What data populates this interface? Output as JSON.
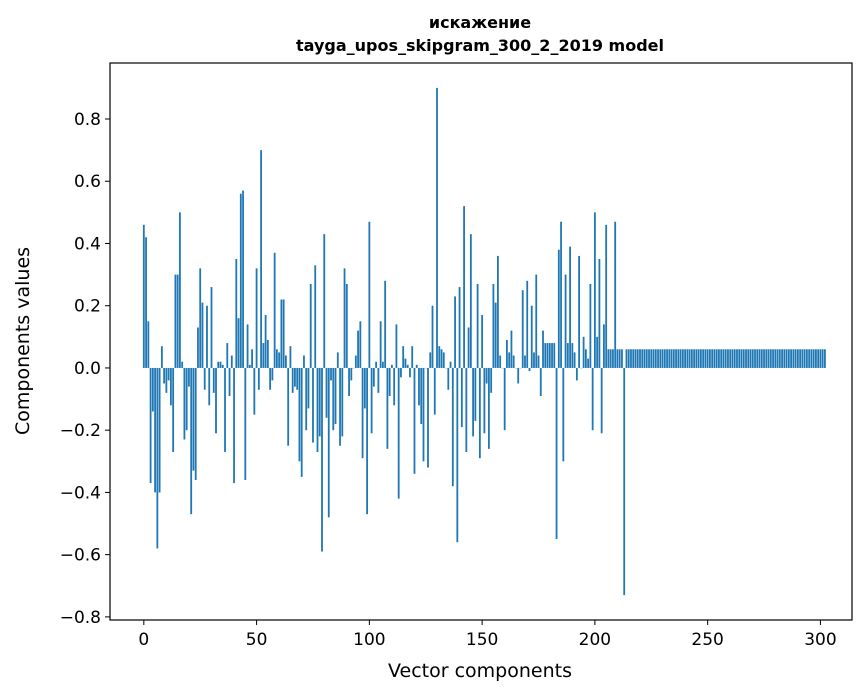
{
  "chart_data": {
    "type": "bar",
    "title": "искажение",
    "subtitle": "tayga_upos_skipgram_300_2_2019 model",
    "xlabel": "Vector components",
    "ylabel": "Components values",
    "xlim": [
      -15,
      314
    ],
    "ylim": [
      -0.81,
      0.98
    ],
    "xticks": [
      0,
      50,
      100,
      150,
      200,
      250,
      300
    ],
    "xtick_labels": [
      "0",
      "50",
      "100",
      "150",
      "200",
      "250",
      "300"
    ],
    "yticks": [
      -0.8,
      -0.6,
      -0.4,
      -0.2,
      0.0,
      0.2,
      0.4,
      0.6,
      0.8
    ],
    "ytick_labels": [
      "−0.8",
      "−0.6",
      "−0.4",
      "−0.2",
      "0.0",
      "0.2",
      "0.4",
      "0.6",
      "0.8"
    ],
    "grid": false,
    "legend": "none",
    "bar_color": "#1f77b4",
    "values": [
      0.46,
      0.42,
      0.15,
      -0.37,
      -0.14,
      -0.4,
      -0.58,
      -0.4,
      0.07,
      -0.05,
      -0.08,
      -0.04,
      -0.12,
      -0.27,
      0.3,
      0.3,
      0.5,
      0.02,
      -0.23,
      -0.2,
      -0.06,
      -0.47,
      -0.33,
      -0.36,
      0.13,
      0.32,
      0.21,
      -0.07,
      0.2,
      -0.12,
      0.26,
      -0.08,
      -0.21,
      0.02,
      0.02,
      0.01,
      -0.27,
      0.08,
      -0.09,
      0.04,
      -0.37,
      0.35,
      0.16,
      0.56,
      0.57,
      -0.36,
      0.14,
      0.01,
      0.06,
      -0.15,
      0.32,
      -0.07,
      0.7,
      0.08,
      0.17,
      0.09,
      -0.07,
      -0.04,
      0.37,
      0.06,
      0.05,
      0.22,
      0.22,
      0.04,
      -0.25,
      0.07,
      -0.08,
      -0.06,
      -0.07,
      -0.3,
      -0.35,
      0.04,
      -0.2,
      -0.13,
      0.27,
      -0.24,
      0.33,
      -0.27,
      -0.22,
      -0.59,
      0.43,
      -0.16,
      -0.48,
      -0.04,
      -0.2,
      -0.18,
      0.05,
      -0.25,
      -0.22,
      0.32,
      0.27,
      -0.09,
      -0.04,
      0.0,
      0.04,
      0.12,
      0.15,
      -0.29,
      -0.13,
      -0.47,
      0.47,
      -0.21,
      -0.06,
      0.02,
      -0.08,
      0.15,
      0.02,
      0.28,
      -0.26,
      -0.09,
      0.01,
      -0.12,
      0.14,
      -0.42,
      -0.03,
      0.07,
      0.03,
      0.01,
      -0.03,
      0.07,
      -0.34,
      0.01,
      -0.12,
      -0.18,
      -0.3,
      0.0,
      -0.32,
      0.05,
      0.2,
      -0.15,
      0.9,
      0.07,
      0.06,
      0.05,
      0.0,
      -0.07,
      0.02,
      -0.38,
      0.23,
      -0.56,
      0.26,
      -0.19,
      0.52,
      -0.27,
      0.13,
      0.43,
      -0.22,
      -0.17,
      0.27,
      -0.29,
      0.17,
      -0.21,
      -0.05,
      -0.26,
      -0.08,
      0.27,
      0.21,
      0.36,
      0.04,
      0.0,
      -0.2,
      0.09,
      0.05,
      0.12,
      0.04,
      0.0,
      -0.05,
      0.0,
      0.25,
      0.04,
      0.28,
      -0.01,
      0.2,
      0.05,
      0.3,
      0.04,
      -0.09,
      0.12,
      0.08,
      0.08,
      0.08,
      0.08,
      0.08,
      -0.55,
      0.38,
      0.47,
      -0.3,
      0.3,
      0.08,
      0.39,
      0.08,
      0.05,
      -0.04,
      0.36,
      0.0,
      0.1,
      0.06,
      0.03,
      0.27,
      -0.2,
      0.5,
      0.1,
      0.35,
      -0.21,
      0.14,
      0.46,
      0.06,
      0.06,
      0.06,
      0.47,
      0.06,
      0.06,
      0.06,
      -0.73,
      0.06,
      0.06,
      0.06,
      0.06,
      0.06,
      0.06,
      0.06,
      0.06,
      0.06,
      0.06,
      0.06,
      0.06,
      0.06,
      0.06,
      0.06,
      0.06,
      0.06,
      0.06,
      0.06,
      0.06,
      0.06,
      0.06,
      0.06,
      0.06,
      0.06,
      0.06,
      0.06,
      0.06,
      0.06,
      0.06,
      0.06,
      0.06,
      0.06,
      0.06,
      0.06,
      0.06,
      0.06,
      0.06,
      0.06,
      0.06,
      0.06,
      0.06,
      0.06,
      0.06,
      0.06,
      0.06,
      0.06,
      0.06,
      0.06,
      0.06,
      0.06,
      0.06,
      0.06,
      0.06,
      0.06,
      0.06,
      0.06,
      0.06,
      0.06,
      0.06,
      0.06,
      0.06,
      0.06,
      0.06,
      0.06,
      0.06,
      0.06,
      0.06,
      0.06,
      0.06,
      0.06,
      0.06,
      0.06,
      0.06,
      0.06,
      0.06,
      0.06,
      0.06,
      0.06,
      0.06,
      0.06,
      0.06,
      0.06,
      0.06,
      0.06,
      0.06,
      0.06,
      0.06,
      0.06
    ]
  }
}
